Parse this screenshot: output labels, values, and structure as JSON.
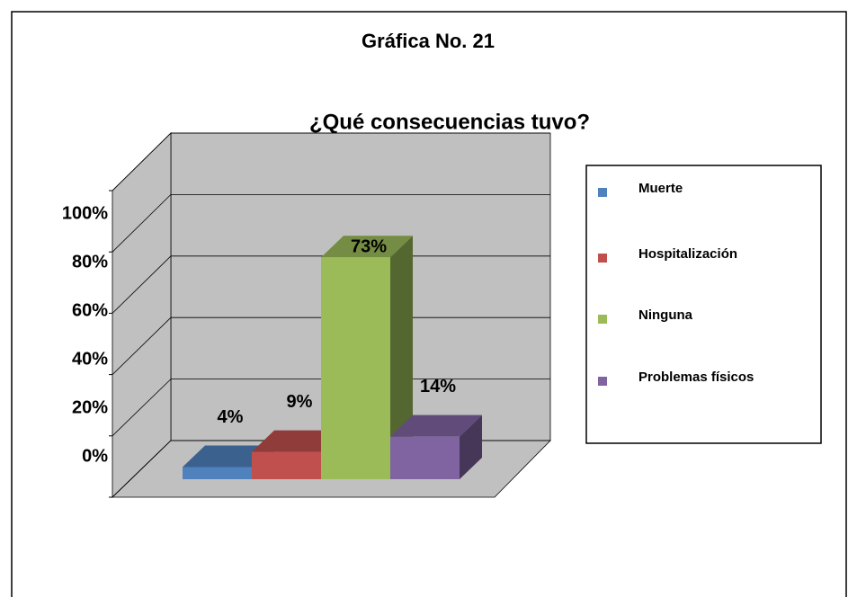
{
  "chart_data": {
    "type": "bar3d",
    "title": "Gráfica No. 21",
    "subtitle": "¿Qué consecuencias tuvo?",
    "categories": [
      "Muerte",
      "Hospitalización",
      "Ninguna",
      "Problemas físicos"
    ],
    "values": [
      4,
      9,
      73,
      14
    ],
    "value_labels": [
      "4%",
      "9%",
      "73%",
      "14%"
    ],
    "colors": [
      "#4f81bd",
      "#c0504d",
      "#9bbb59",
      "#8064a2"
    ],
    "ylim": [
      0,
      100
    ],
    "yticks": [
      {
        "value": 0,
        "label": "0%"
      },
      {
        "value": 20,
        "label": "20%"
      },
      {
        "value": 40,
        "label": "40%"
      },
      {
        "value": 60,
        "label": "60%"
      },
      {
        "value": 80,
        "label": "80%"
      },
      {
        "value": 100,
        "label": "100%"
      }
    ],
    "grid": true,
    "legend": "right"
  }
}
